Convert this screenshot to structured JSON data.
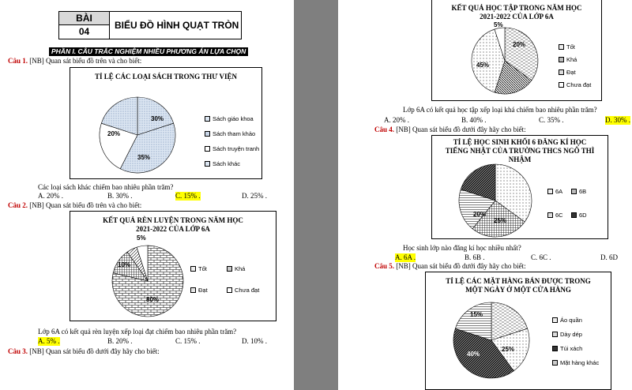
{
  "left": {
    "bai_label": "BÀI",
    "bai_number": "04",
    "lesson_title": "BIỂU ĐỒ HÌNH QUẠT TRÒN",
    "section": "PHẦN I. CÂU TRẮC NGHIỆM NHIỀU PHƯƠNG ÁN LỰA CHỌN",
    "q1": {
      "label": "Câu 1.",
      "text": "[NB] Quan sát biểu đồ trên và cho biết:",
      "chart_title": "TỈ LỆ CÁC LOẠI SÁCH TRONG THƯ VIỆN",
      "legend": [
        "Sách giáo khoa",
        "Sách tham khảo",
        "Sách truyện tranh",
        "Sách khác"
      ],
      "labels": [
        "30%",
        "35%",
        "20%"
      ],
      "question": "Các loại sách khác chiếm bao nhiêu phần trăm?",
      "options": [
        "A. 20% .",
        "B. 30% .",
        "C. 15% .",
        "D. 25% ."
      ]
    },
    "q2": {
      "label": "Câu 2.",
      "text": "[NB] Quan sát biểu đồ trên và cho biết:",
      "chart_title_1": "KẾT QUẢ RÈN LUYỆN TRONG NĂM HỌC",
      "chart_title_2": "2021-2022 CỦA LỚP 6A",
      "legend": [
        "Tốt",
        "Khá",
        "Đạt",
        "Chưa đạt"
      ],
      "labels": [
        "5%",
        "10%",
        "80%"
      ],
      "question": "Lớp 6A có kết quả rèn luyện xếp loại đạt chiếm bao nhiêu phần trăm?",
      "options": [
        "A. 5% .",
        "B. 20% .",
        "C. 15% .",
        "D. 10% ."
      ]
    },
    "q3": {
      "label": "Câu 3.",
      "text": "[NB] Quan sát biểu đồ dưới đây hãy cho biết:"
    }
  },
  "right": {
    "q3": {
      "chart_title_1": "KẾT QUẢ HỌC TẬP TRONG NĂM HỌC",
      "chart_title_2": "2021-2022 CỦA LỚP 6A",
      "legend": [
        "Tốt",
        "Khá",
        "Đạt",
        "Chưa đạt"
      ],
      "labels": [
        "5%",
        "20%",
        "45%"
      ],
      "question": "Lớp 6A có kết quả học tập xếp loại khá chiếm bao nhiêu phần trăm?",
      "options": [
        "A. 20% .",
        "B. 40% .",
        "C. 35% .",
        "D. 30% ."
      ]
    },
    "q4": {
      "label": "Câu 4.",
      "text": "[NB] Quan sát biểu đồ dưới đây hãy cho biết:",
      "chart_title_1": "TỈ LỆ HỌC SINH KHỐI 6 ĐĂNG KÍ HỌC",
      "chart_title_2": "TIẾNG NHẬT CỦA TRƯỜNG THCS NGÔ THÌ",
      "chart_title_3": "NHẬM",
      "legend": [
        "6A",
        "6B",
        "6C",
        "6D"
      ],
      "labels": [
        "20%",
        "25%"
      ],
      "question": "Học sinh lớp nào đăng kí học nhiều nhất?",
      "options": [
        "A. 6A .",
        "B. 6B .",
        "C. 6C .",
        "D. 6D"
      ]
    },
    "q5": {
      "label": "Câu 5.",
      "text": "[NB] Quan sát biểu đồ dưới đây hãy cho biết:",
      "chart_title_1": "TỈ LỆ CÁC MẶT HÀNG BÁN ĐƯỢC TRONG",
      "chart_title_2": "MỘT NGÀY Ở MỘT CỬA HÀNG",
      "legend": [
        "Áo quần",
        "Dày dép",
        "Túi xách",
        "Mặt hàng khác"
      ],
      "labels": [
        "15%",
        "25%",
        "40%"
      ]
    }
  },
  "chart_data": [
    {
      "type": "pie",
      "title": "TỈ LỆ CÁC LOẠI SÁCH TRONG THƯ VIỆN",
      "categories": [
        "Sách giáo khoa",
        "Sách tham khảo",
        "Sách truyện tranh",
        "Sách khác"
      ],
      "values": [
        30,
        35,
        20,
        15
      ]
    },
    {
      "type": "pie",
      "title": "KẾT QUẢ RÈN LUYỆN TRONG NĂM HỌC 2021-2022 CỦA LỚP 6A",
      "categories": [
        "Tốt",
        "Khá",
        "Đạt",
        "Chưa đạt"
      ],
      "values": [
        80,
        10,
        5,
        5
      ]
    },
    {
      "type": "pie",
      "title": "KẾT QUẢ HỌC TẬP TRONG NĂM HỌC 2021-2022 CỦA LỚP 6A",
      "categories": [
        "Tốt",
        "Khá",
        "Đạt",
        "Chưa đạt"
      ],
      "values": [
        30,
        20,
        45,
        5
      ]
    },
    {
      "type": "pie",
      "title": "TỈ LỆ HỌC SINH KHỐI 6 ĐĂNG KÍ HỌC TIẾNG NHẬT CỦA TRƯỜNG THCS NGÔ THÌ NHẬM",
      "categories": [
        "6A",
        "6B",
        "6C",
        "6D"
      ],
      "values": [
        35,
        25,
        20,
        20
      ]
    },
    {
      "type": "pie",
      "title": "TỈ LỆ CÁC MẶT HÀNG BÁN ĐƯỢC TRONG MỘT NGÀY Ở MỘT CỬA HÀNG",
      "categories": [
        "Áo quần",
        "Dày dép",
        "Túi xách",
        "Mặt hàng khác"
      ],
      "values": [
        20,
        25,
        40,
        15
      ]
    }
  ]
}
